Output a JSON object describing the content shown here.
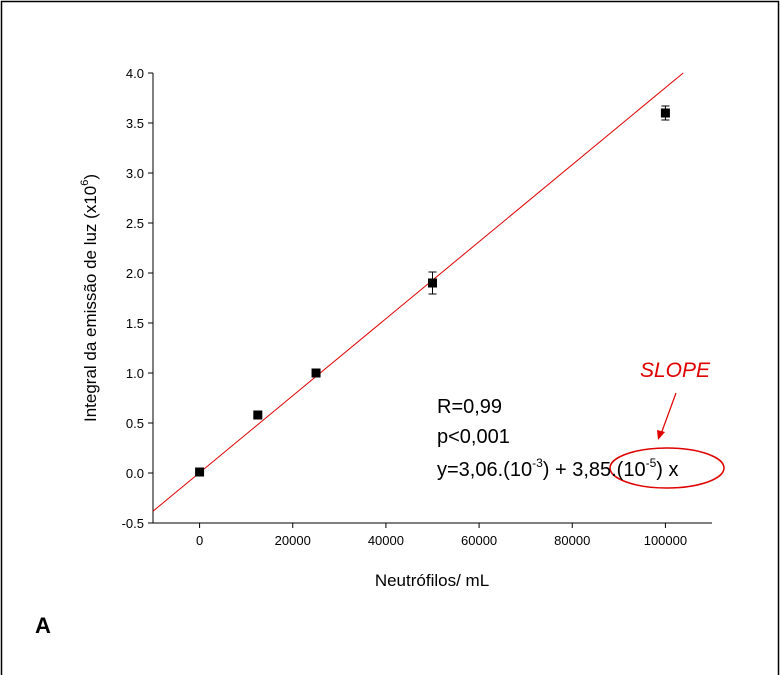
{
  "chart_data": {
    "type": "scatter",
    "x_label": "Neutrófilos/ mL",
    "y_label": [
      "Integral da  emissão de luz (x10",
      "6",
      ")"
    ],
    "x": [
      0,
      12500,
      25000,
      50000,
      100000
    ],
    "values": [
      0.01,
      0.58,
      1.0,
      1.9,
      3.6
    ],
    "errors": [
      0,
      0,
      0,
      0.11,
      0.07
    ],
    "color": "#000000",
    "fit": {
      "intercept": 0.00306,
      "slope": 3.85e-05,
      "color": "#e00000"
    },
    "xlim": [
      -10000,
      110000
    ],
    "xticks": [
      0,
      20000,
      40000,
      60000,
      80000,
      100000
    ],
    "ylim": [
      -0.5,
      4.0
    ],
    "yticks": [
      {
        "value": -0.5,
        "label": "-0.5"
      },
      {
        "value": 0,
        "label": "0.0"
      },
      0.5,
      {
        "value": 1,
        "label": "1.0"
      },
      1.5,
      {
        "value": 2,
        "label": "2.0"
      },
      2.5,
      {
        "value": 3,
        "label": "3.0"
      },
      3.5,
      {
        "value": 4,
        "label": "4.0"
      }
    ],
    "annotations": {
      "r": "R=0,99",
      "p": "p<0,001",
      "equation": [
        "y=3,06.(10",
        "-3",
        ") + ",
        "3,85.(10",
        "-5",
        ") x"
      ],
      "highlight": "SLOPE"
    },
    "panel_label": "A"
  }
}
